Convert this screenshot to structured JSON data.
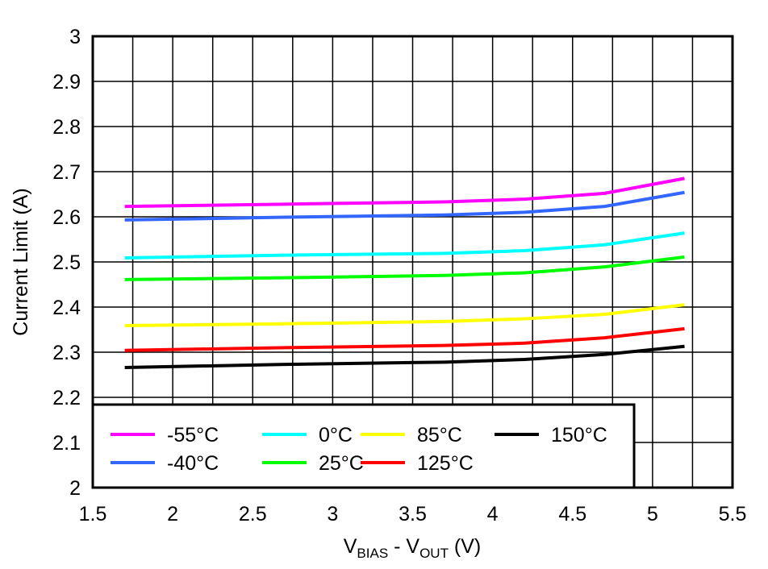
{
  "chart_data": {
    "type": "line",
    "title": "",
    "xlabel": {
      "main": "V",
      "sub1": "BIAS",
      "mid": " - V",
      "sub2": "OUT",
      "end": " (V)"
    },
    "ylabel": "Current Limit (A)",
    "xlim": [
      1.5,
      5.5
    ],
    "ylim": [
      2,
      3
    ],
    "grid": true,
    "legend_position": "bottom-left",
    "x_ticks": [
      "1.5",
      "2",
      "2.5",
      "3",
      "3.5",
      "4",
      "4.5",
      "5",
      "5.5"
    ],
    "y_ticks": [
      "2",
      "2.1",
      "2.2",
      "2.3",
      "2.4",
      "2.5",
      "2.6",
      "2.7",
      "2.8",
      "2.9",
      "3"
    ],
    "x": [
      1.7,
      2.7,
      3.7,
      4.2,
      4.7,
      5.2
    ],
    "series": [
      {
        "name": "-55°C",
        "color": "#ff00ff",
        "values": [
          2.623,
          2.628,
          2.633,
          2.639,
          2.652,
          2.685
        ]
      },
      {
        "name": "-40°C",
        "color": "#3366ff",
        "values": [
          2.593,
          2.599,
          2.604,
          2.61,
          2.623,
          2.654
        ]
      },
      {
        "name": "0°C",
        "color": "#00ffff",
        "values": [
          2.509,
          2.515,
          2.519,
          2.525,
          2.538,
          2.564
        ]
      },
      {
        "name": "25°C",
        "color": "#00ff00",
        "values": [
          2.461,
          2.465,
          2.47,
          2.476,
          2.489,
          2.511
        ]
      },
      {
        "name": "85°C",
        "color": "#ffff00",
        "values": [
          2.359,
          2.363,
          2.368,
          2.374,
          2.384,
          2.405
        ]
      },
      {
        "name": "125°C",
        "color": "#ff0000",
        "values": [
          2.304,
          2.31,
          2.315,
          2.32,
          2.332,
          2.352
        ]
      },
      {
        "name": "150°C",
        "color": "#000000",
        "values": [
          2.266,
          2.273,
          2.278,
          2.284,
          2.295,
          2.313
        ]
      }
    ]
  }
}
